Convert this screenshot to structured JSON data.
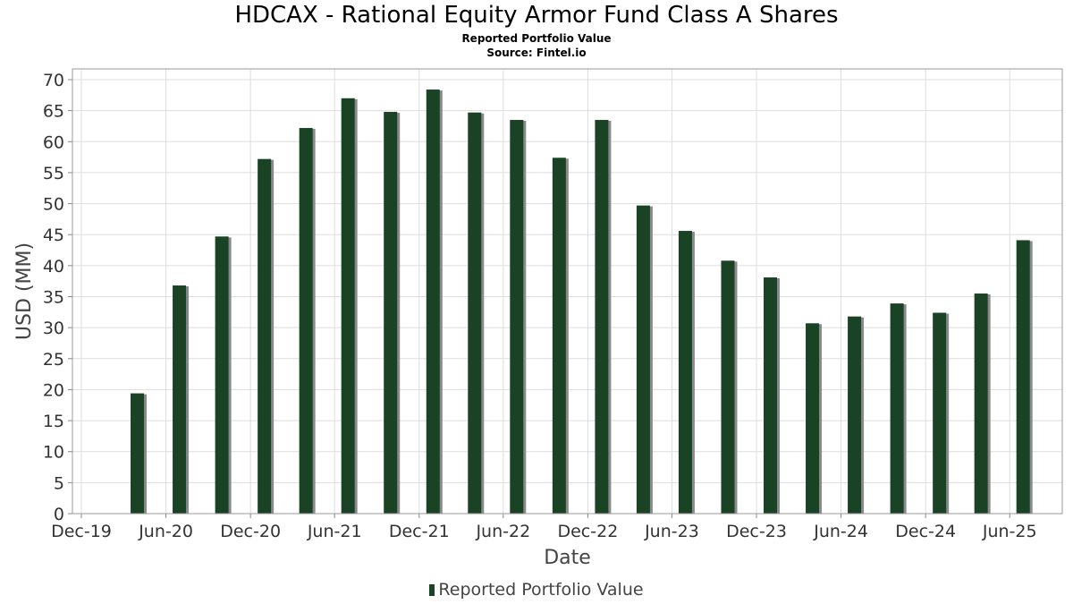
{
  "chart_data": {
    "type": "bar",
    "title": "HDCAX - Rational Equity Armor Fund Class A Shares",
    "subtitle": "Reported Portfolio Value",
    "source": "Source: Fintel.io",
    "xlabel": "Date",
    "ylabel": "USD (MM)",
    "ylim": [
      0,
      70
    ],
    "yticks": [
      0,
      5,
      10,
      15,
      20,
      25,
      30,
      35,
      40,
      45,
      50,
      55,
      60,
      65,
      70
    ],
    "xlim": [
      "2019-12-01",
      "2025-09-15"
    ],
    "xticks": [
      {
        "label": "Dec-19",
        "date": "2019-12-01"
      },
      {
        "label": "Jun-20",
        "date": "2020-06-01"
      },
      {
        "label": "Dec-20",
        "date": "2020-12-01"
      },
      {
        "label": "Jun-21",
        "date": "2021-06-01"
      },
      {
        "label": "Dec-21",
        "date": "2021-12-01"
      },
      {
        "label": "Jun-22",
        "date": "2022-06-01"
      },
      {
        "label": "Dec-22",
        "date": "2022-12-01"
      },
      {
        "label": "Jun-23",
        "date": "2023-06-01"
      },
      {
        "label": "Dec-23",
        "date": "2023-12-01"
      },
      {
        "label": "Jun-24",
        "date": "2024-06-01"
      },
      {
        "label": "Dec-24",
        "date": "2024-12-01"
      },
      {
        "label": "Jun-25",
        "date": "2025-06-01"
      }
    ],
    "grid": true,
    "legend_position": "bottom-center",
    "series": [
      {
        "name": "Reported Portfolio Value",
        "color": "#1a4225",
        "points": [
          {
            "date": "2020-03-31",
            "value": 19.4
          },
          {
            "date": "2020-06-30",
            "value": 36.8
          },
          {
            "date": "2020-09-30",
            "value": 44.7
          },
          {
            "date": "2020-12-31",
            "value": 57.2
          },
          {
            "date": "2021-03-31",
            "value": 62.2
          },
          {
            "date": "2021-06-30",
            "value": 67.0
          },
          {
            "date": "2021-09-30",
            "value": 64.8
          },
          {
            "date": "2021-12-31",
            "value": 68.4
          },
          {
            "date": "2022-03-31",
            "value": 64.7
          },
          {
            "date": "2022-06-30",
            "value": 63.5
          },
          {
            "date": "2022-09-30",
            "value": 57.4
          },
          {
            "date": "2022-12-31",
            "value": 63.5
          },
          {
            "date": "2023-03-31",
            "value": 49.7
          },
          {
            "date": "2023-06-30",
            "value": 45.6
          },
          {
            "date": "2023-09-30",
            "value": 40.8
          },
          {
            "date": "2023-12-31",
            "value": 38.1
          },
          {
            "date": "2024-03-31",
            "value": 30.7
          },
          {
            "date": "2024-06-30",
            "value": 31.8
          },
          {
            "date": "2024-09-30",
            "value": 33.9
          },
          {
            "date": "2024-12-31",
            "value": 32.4
          },
          {
            "date": "2025-03-31",
            "value": 35.5
          },
          {
            "date": "2025-06-30",
            "value": 44.1
          }
        ]
      }
    ]
  }
}
